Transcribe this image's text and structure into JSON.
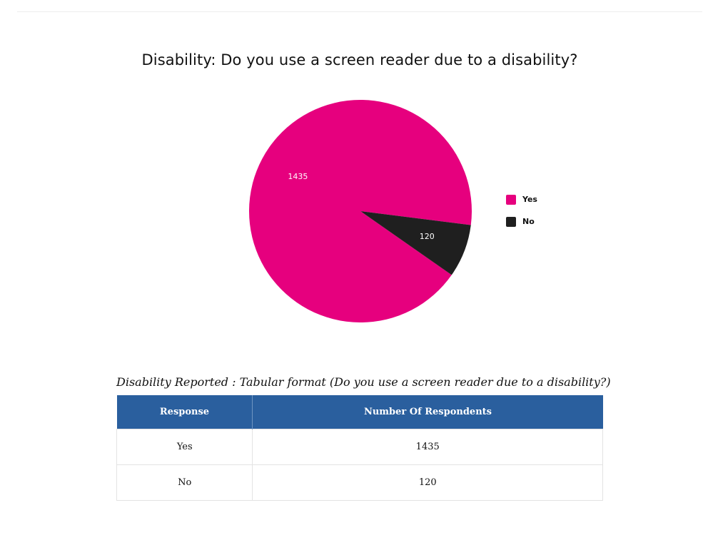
{
  "chart_data": {
    "type": "pie",
    "title": "Disability: Do you use a screen reader due to a disability?",
    "categories": [
      "Yes",
      "No"
    ],
    "values": [
      1435,
      120
    ],
    "colors": [
      "#e6007e",
      "#1f1f1f"
    ],
    "legend_position": "right"
  },
  "table": {
    "caption": "Disability Reported : Tabular format (Do you use a screen reader due to a disability?)",
    "headers": [
      "Response",
      "Number Of Respondents"
    ],
    "rows": [
      [
        "Yes",
        "1435"
      ],
      [
        "No",
        "120"
      ]
    ]
  }
}
